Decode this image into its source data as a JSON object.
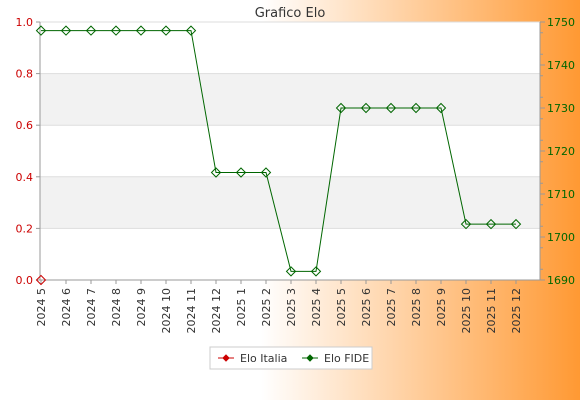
{
  "chart_data": {
    "type": "line",
    "title": "Grafico Elo",
    "categories": [
      "2024 5",
      "2024 6",
      "2024 7",
      "2024 8",
      "2024 9",
      "2024 10",
      "2024 11",
      "2024 12",
      "2025 1",
      "2025 2",
      "2025 3",
      "2025 4",
      "2025 5",
      "2025 6",
      "2025 7",
      "2025 8",
      "2025 9",
      "2025 10",
      "2025 11",
      "2025 12"
    ],
    "left_axis": {
      "ylim": [
        0,
        1
      ],
      "ticks": [
        "0.0",
        "0.2",
        "0.4",
        "0.6",
        "0.8",
        "1.0"
      ]
    },
    "right_axis": {
      "ylim": [
        1690,
        1750
      ],
      "ticks": [
        "1690",
        "1700",
        "1710",
        "1720",
        "1730",
        "1740",
        "1750"
      ]
    },
    "series": [
      {
        "name": "Elo Italia",
        "axis": "left",
        "color": "#cc0000",
        "values": [
          0,
          null,
          null,
          null,
          null,
          null,
          null,
          null,
          null,
          null,
          null,
          null,
          null,
          null,
          null,
          null,
          null,
          null,
          null,
          null
        ]
      },
      {
        "name": "Elo FIDE",
        "axis": "right",
        "color": "#006600",
        "values": [
          1748,
          1748,
          1748,
          1748,
          1748,
          1748,
          1748,
          1715,
          1715,
          1715,
          1692,
          1692,
          1730,
          1730,
          1730,
          1730,
          1730,
          1703,
          1703,
          1703
        ]
      }
    ],
    "grid": true,
    "legend": "bottom-center",
    "colors": {
      "axis_text_left": "#cc0000",
      "axis_text_right": "#006600",
      "background_start": "#ffffff",
      "background_end": "#ff9933"
    }
  }
}
